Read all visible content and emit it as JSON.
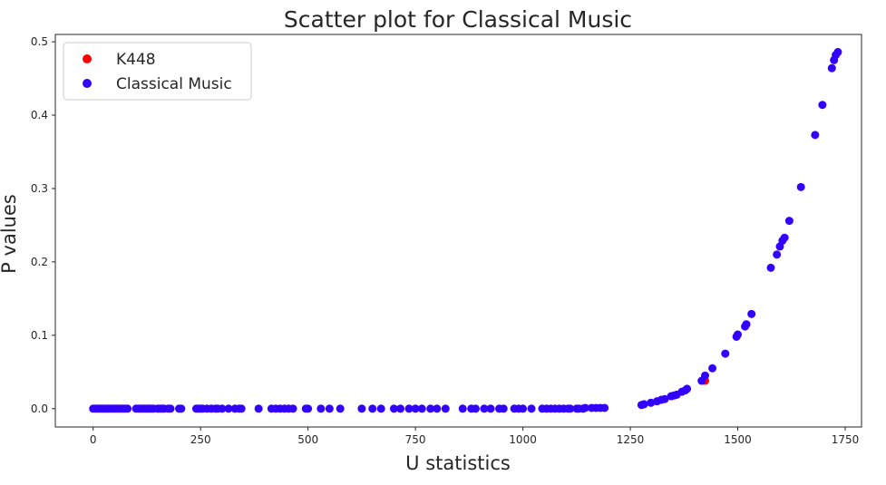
{
  "chart_data": {
    "type": "scatter",
    "title": "Scatter plot for Classical Music",
    "xlabel": "U statistics",
    "ylabel": "P values",
    "xlim": [
      -88,
      1788
    ],
    "ylim": [
      -0.025,
      0.51
    ],
    "xticks": [
      0,
      250,
      500,
      750,
      1000,
      1250,
      1500,
      1750
    ],
    "yticks": [
      0.0,
      0.1,
      0.2,
      0.3,
      0.4,
      0.5
    ],
    "grid": false,
    "legend_position": "top-left",
    "series": [
      {
        "name": "K448",
        "color": "#ff0000",
        "points": [
          [
            1424,
            0.038
          ]
        ]
      },
      {
        "name": "Classical Music",
        "color": "#3300ff",
        "points": [
          [
            0,
            0
          ],
          [
            5,
            0
          ],
          [
            10,
            0
          ],
          [
            15,
            0
          ],
          [
            20,
            0
          ],
          [
            25,
            0
          ],
          [
            30,
            0
          ],
          [
            35,
            0
          ],
          [
            40,
            0
          ],
          [
            45,
            0
          ],
          [
            50,
            0
          ],
          [
            55,
            0
          ],
          [
            60,
            0
          ],
          [
            65,
            0
          ],
          [
            70,
            0
          ],
          [
            75,
            0
          ],
          [
            80,
            0
          ],
          [
            100,
            0
          ],
          [
            105,
            0
          ],
          [
            110,
            0
          ],
          [
            115,
            0
          ],
          [
            120,
            0
          ],
          [
            125,
            0
          ],
          [
            130,
            0
          ],
          [
            135,
            0
          ],
          [
            140,
            0
          ],
          [
            150,
            0
          ],
          [
            155,
            0
          ],
          [
            160,
            0
          ],
          [
            165,
            0
          ],
          [
            175,
            0
          ],
          [
            180,
            0
          ],
          [
            200,
            0
          ],
          [
            205,
            0
          ],
          [
            240,
            0
          ],
          [
            245,
            0
          ],
          [
            250,
            0
          ],
          [
            255,
            0
          ],
          [
            265,
            0
          ],
          [
            275,
            0
          ],
          [
            285,
            0
          ],
          [
            290,
            0
          ],
          [
            300,
            0
          ],
          [
            315,
            0
          ],
          [
            330,
            0
          ],
          [
            340,
            0
          ],
          [
            345,
            0
          ],
          [
            385,
            0
          ],
          [
            415,
            0
          ],
          [
            425,
            0
          ],
          [
            435,
            0
          ],
          [
            445,
            0
          ],
          [
            455,
            0
          ],
          [
            465,
            0
          ],
          [
            495,
            0
          ],
          [
            500,
            0
          ],
          [
            530,
            0
          ],
          [
            550,
            0
          ],
          [
            575,
            0
          ],
          [
            625,
            0
          ],
          [
            650,
            0
          ],
          [
            670,
            0
          ],
          [
            700,
            0
          ],
          [
            715,
            0
          ],
          [
            735,
            0
          ],
          [
            750,
            0
          ],
          [
            765,
            0
          ],
          [
            785,
            0
          ],
          [
            800,
            0
          ],
          [
            820,
            0
          ],
          [
            860,
            0
          ],
          [
            880,
            0
          ],
          [
            890,
            0
          ],
          [
            910,
            0
          ],
          [
            925,
            0
          ],
          [
            945,
            0
          ],
          [
            955,
            0
          ],
          [
            980,
            0
          ],
          [
            990,
            0
          ],
          [
            1000,
            0
          ],
          [
            1020,
            0
          ],
          [
            1045,
            0
          ],
          [
            1055,
            0
          ],
          [
            1065,
            0
          ],
          [
            1075,
            0
          ],
          [
            1085,
            0
          ],
          [
            1095,
            0
          ],
          [
            1105,
            0
          ],
          [
            1110,
            0
          ],
          [
            1125,
            0
          ],
          [
            1130,
            0
          ],
          [
            1140,
            0
          ],
          [
            1145,
            0.001
          ],
          [
            1160,
            0.001
          ],
          [
            1170,
            0.001
          ],
          [
            1180,
            0.001
          ],
          [
            1190,
            0.001
          ],
          [
            1276,
            0.005
          ],
          [
            1282,
            0.006
          ],
          [
            1298,
            0.008
          ],
          [
            1312,
            0.01
          ],
          [
            1322,
            0.012
          ],
          [
            1330,
            0.013
          ],
          [
            1345,
            0.017
          ],
          [
            1352,
            0.018
          ],
          [
            1358,
            0.019
          ],
          [
            1370,
            0.023
          ],
          [
            1378,
            0.025
          ],
          [
            1382,
            0.027
          ],
          [
            1416,
            0.038
          ],
          [
            1424,
            0.045
          ],
          [
            1441,
            0.055
          ],
          [
            1471,
            0.075
          ],
          [
            1497,
            0.098
          ],
          [
            1500,
            0.101
          ],
          [
            1517,
            0.112
          ],
          [
            1520,
            0.115
          ],
          [
            1532,
            0.129
          ],
          [
            1577,
            0.192
          ],
          [
            1591,
            0.21
          ],
          [
            1598,
            0.221
          ],
          [
            1604,
            0.229
          ],
          [
            1609,
            0.233
          ],
          [
            1620,
            0.256
          ],
          [
            1647,
            0.302
          ],
          [
            1680,
            0.373
          ],
          [
            1697,
            0.414
          ],
          [
            1719,
            0.464
          ],
          [
            1724,
            0.475
          ],
          [
            1728,
            0.482
          ],
          [
            1733,
            0.486
          ]
        ]
      }
    ]
  }
}
